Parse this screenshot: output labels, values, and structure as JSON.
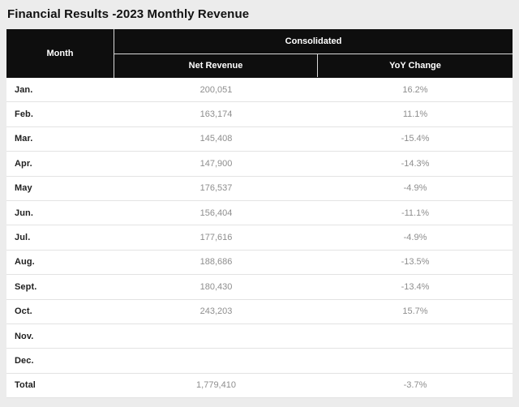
{
  "title": "Financial Results -2023 Monthly Revenue",
  "colors": {
    "page_background": "#ececec",
    "header_background": "#0e0e0e",
    "header_text": "#ffffff",
    "body_background": "#ffffff",
    "month_text": "#1f1f1f",
    "value_text": "#8e8e8e",
    "row_separator": "#e3e3e3",
    "header_separator": "#d8d8d8"
  },
  "table": {
    "header": {
      "month": "Month",
      "group": "Consolidated",
      "columns": [
        "Net Revenue",
        "YoY Change"
      ]
    },
    "rows": [
      {
        "month": "Jan.",
        "net_revenue": "200,051",
        "yoy_change": "16.2%"
      },
      {
        "month": "Feb.",
        "net_revenue": "163,174",
        "yoy_change": "11.1%"
      },
      {
        "month": "Mar.",
        "net_revenue": "145,408",
        "yoy_change": "-15.4%"
      },
      {
        "month": "Apr.",
        "net_revenue": "147,900",
        "yoy_change": "-14.3%"
      },
      {
        "month": "May",
        "net_revenue": "176,537",
        "yoy_change": "-4.9%"
      },
      {
        "month": "Jun.",
        "net_revenue": "156,404",
        "yoy_change": "-11.1%"
      },
      {
        "month": "Jul.",
        "net_revenue": "177,616",
        "yoy_change": "-4.9%"
      },
      {
        "month": "Aug.",
        "net_revenue": "188,686",
        "yoy_change": "-13.5%"
      },
      {
        "month": "Sept.",
        "net_revenue": "180,430",
        "yoy_change": "-13.4%"
      },
      {
        "month": "Oct.",
        "net_revenue": "243,203",
        "yoy_change": "15.7%"
      },
      {
        "month": "Nov.",
        "net_revenue": "",
        "yoy_change": ""
      },
      {
        "month": "Dec.",
        "net_revenue": "",
        "yoy_change": ""
      },
      {
        "month": "Total",
        "net_revenue": "1,779,410",
        "yoy_change": "-3.7%"
      }
    ]
  }
}
